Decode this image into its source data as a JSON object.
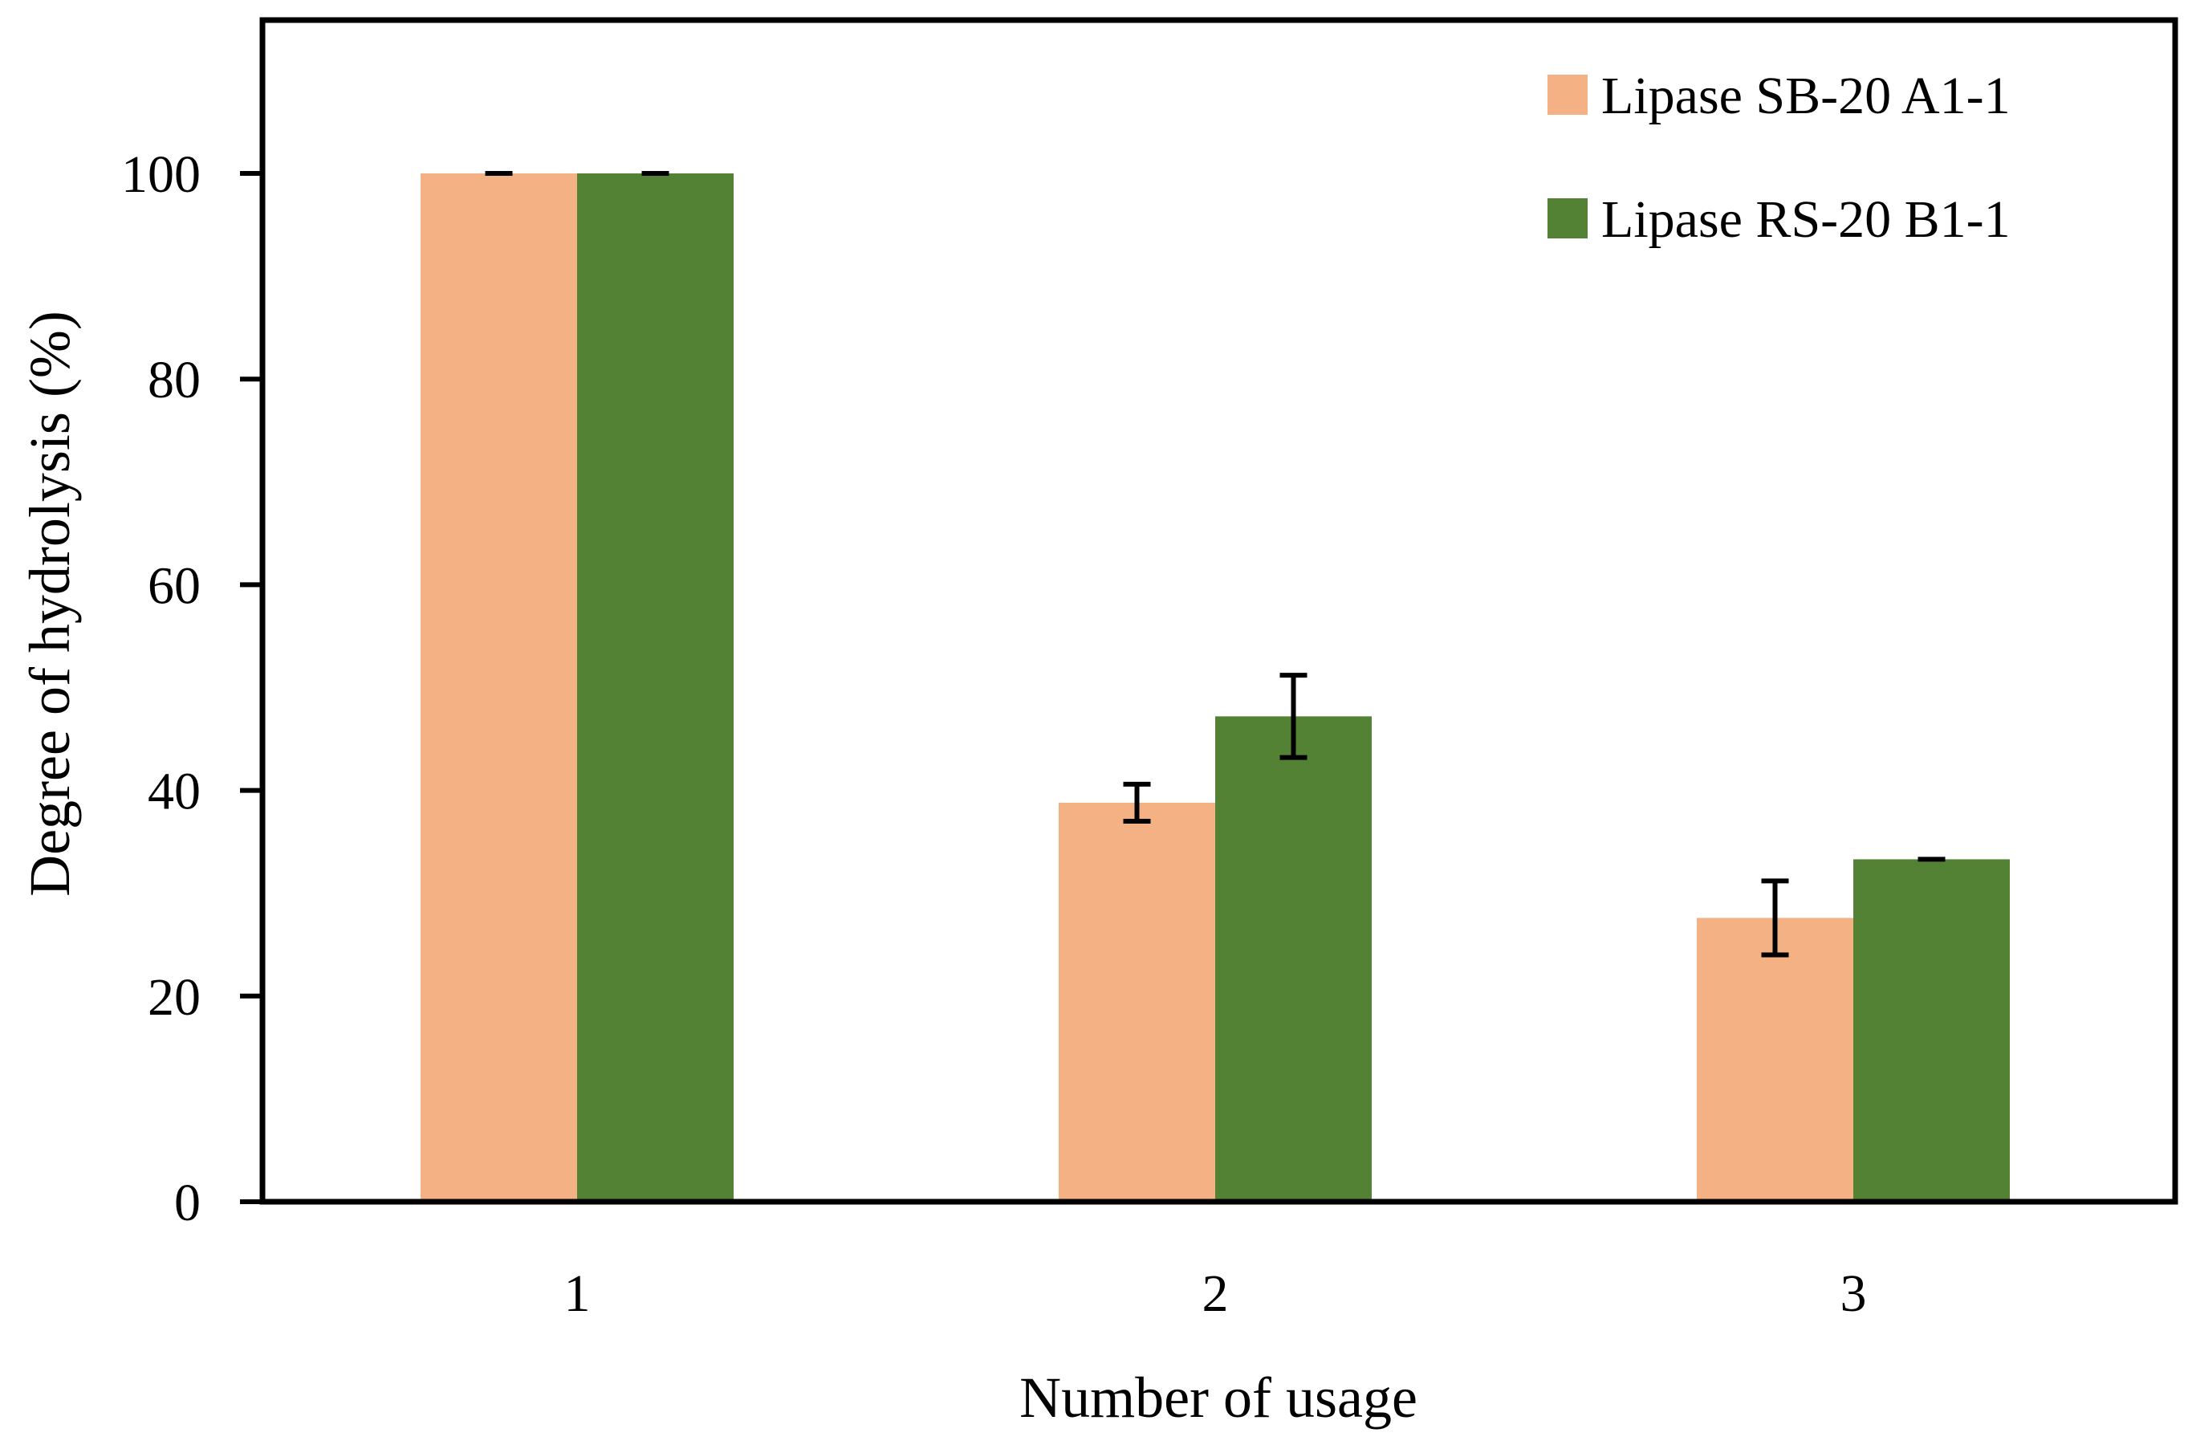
{
  "chart_data": {
    "type": "bar",
    "title": "",
    "xlabel": "Number of usage",
    "ylabel": "Degree of hydrolysis (%)",
    "categories": [
      "1",
      "2",
      "3"
    ],
    "ylim": [
      0,
      115
    ],
    "yticks": [
      0,
      20,
      40,
      60,
      80,
      100
    ],
    "grid": false,
    "legend": "top-right",
    "series": [
      {
        "name": "Lipase SB-20 A1-1",
        "color": "#f4b183",
        "values": [
          100,
          38.8,
          27.6
        ],
        "errors": [
          0,
          1.8,
          3.6
        ]
      },
      {
        "name": "Lipase RS-20 B1-1",
        "color": "#548235",
        "values": [
          100,
          47.2,
          33.3
        ],
        "errors": [
          0,
          4.0,
          0
        ]
      }
    ]
  }
}
